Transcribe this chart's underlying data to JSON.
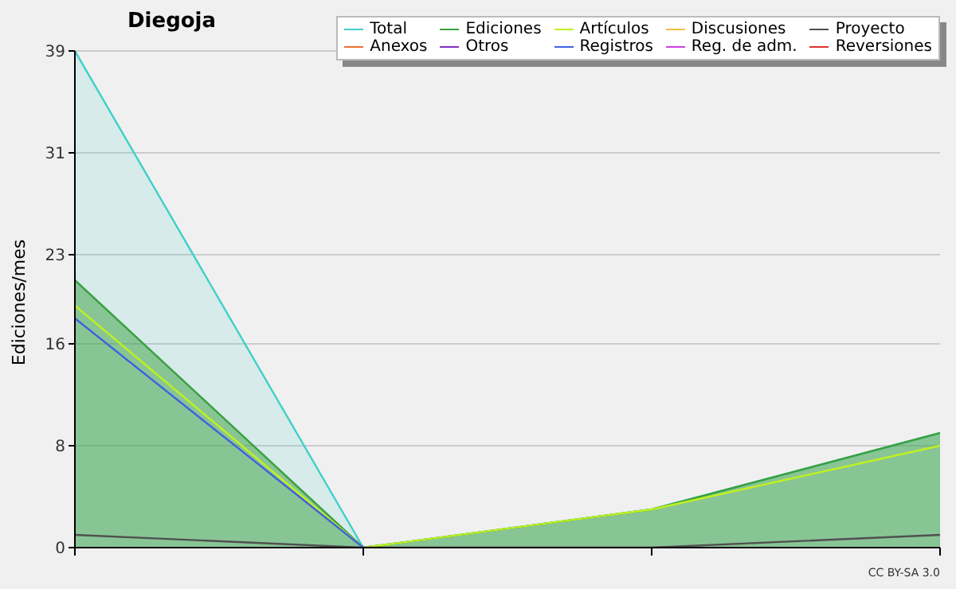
{
  "chart_data": {
    "type": "line",
    "title": "Diegoja",
    "ylabel": "Ediciones/mes",
    "categories": [
      null,
      null,
      null,
      null
    ],
    "series": [
      {
        "name": "Total",
        "type": "area",
        "color": "#40d0c8",
        "values": [
          39,
          0,
          3,
          9
        ]
      },
      {
        "name": "Ediciones",
        "type": "area",
        "color": "#3aa040",
        "values": [
          21,
          0,
          3,
          9
        ]
      },
      {
        "name": "Artículos",
        "color": "#c0f020",
        "values": [
          19,
          0,
          3,
          8
        ]
      },
      {
        "name": "Discusiones",
        "color": "#f0c040",
        "values": [
          null,
          null,
          null,
          null
        ]
      },
      {
        "name": "Proyecto",
        "color": "#505050",
        "values": [
          1,
          0,
          0,
          1
        ]
      },
      {
        "name": "Anexos",
        "color": "#f07030",
        "values": [
          null,
          null,
          null,
          null
        ]
      },
      {
        "name": "Otros",
        "color": "#8030c0",
        "values": [
          null,
          null,
          null,
          null
        ]
      },
      {
        "name": "Registros",
        "color": "#4060e0",
        "values": [
          18,
          0,
          null,
          null
        ]
      },
      {
        "name": "Reg. de adm.",
        "color": "#d040e0",
        "values": [
          null,
          null,
          null,
          null
        ]
      },
      {
        "name": "Reversiones",
        "color": "#e03030",
        "values": [
          null,
          null,
          null,
          null
        ]
      }
    ],
    "ylim": [
      0,
      39
    ],
    "yticks": [
      0,
      8,
      16,
      23,
      31,
      39
    ],
    "grid": "y",
    "legend": "top right",
    "annotations": [
      "CC BY-SA 3.0"
    ]
  }
}
